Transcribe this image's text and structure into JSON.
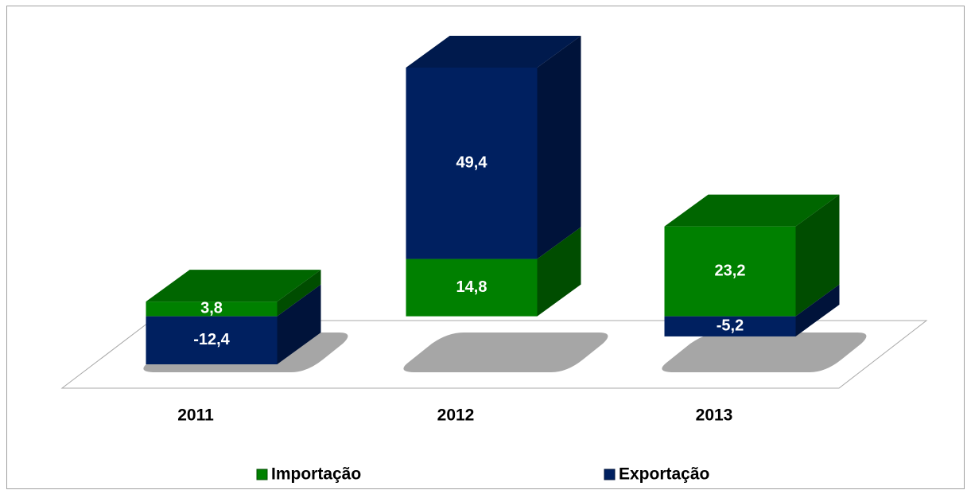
{
  "chart_data": {
    "type": "bar3d_stacked",
    "categories": [
      "2011",
      "2012",
      "2013"
    ],
    "series": [
      {
        "name": "Importação",
        "color": "#008000",
        "values": [
          3.8,
          14.8,
          23.2
        ],
        "value_labels": [
          "3,8",
          "14,8",
          "23,2"
        ]
      },
      {
        "name": "Exportação",
        "color": "#002060",
        "values": [
          -12.4,
          49.4,
          -5.2
        ],
        "value_labels": [
          "-12,4",
          "49,4",
          "-5,2"
        ]
      }
    ]
  }
}
